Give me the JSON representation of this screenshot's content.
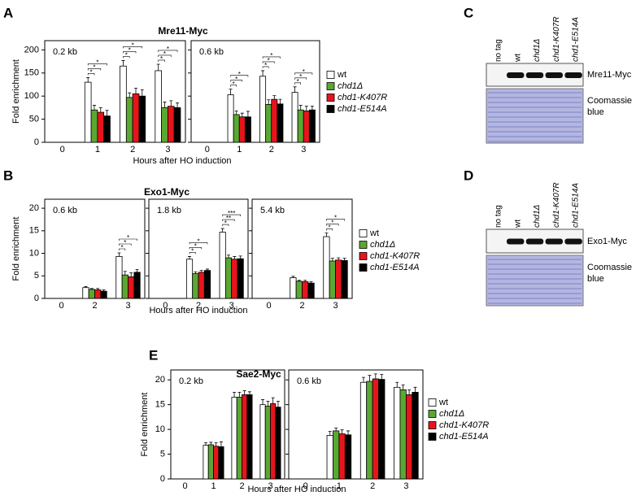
{
  "chart_data": [
    {
      "type": "bar",
      "panel": "A",
      "title": "Mre11-Myc",
      "ylabel": "Fold enrichment",
      "xlabel": "Hours after HO induction",
      "categories": [
        "0",
        "1",
        "2",
        "3"
      ],
      "ylim": [
        0,
        220
      ],
      "yticks": [
        0,
        50,
        100,
        150,
        200
      ],
      "series": [
        {
          "name": "wt",
          "color": "#ffffff"
        },
        {
          "name": "chd1Δ",
          "color": "#5aa832"
        },
        {
          "name": "chd1-K407R",
          "color": "#e8141c"
        },
        {
          "name": "chd1-E514A",
          "color": "#000000"
        }
      ],
      "subplots": [
        {
          "label": "0.2 kb",
          "values": [
            [
              null,
              130,
              165,
              155
            ],
            [
              null,
              70,
              97,
              75
            ],
            [
              null,
              65,
              105,
              78
            ],
            [
              null,
              57,
              100,
              75
            ]
          ],
          "errors": [
            [
              null,
              10,
              12,
              14
            ],
            [
              null,
              10,
              10,
              12
            ],
            [
              null,
              10,
              12,
              12
            ],
            [
              null,
              12,
              14,
              10
            ]
          ],
          "significance": [
            null,
            [
              "*",
              "*",
              "*"
            ],
            [
              "*",
              "*",
              "*"
            ],
            [
              "*",
              "*",
              "*"
            ]
          ]
        },
        {
          "label": "0.6 kb",
          "values": [
            [
              null,
              103,
              143,
              108
            ],
            [
              null,
              60,
              82,
              70
            ],
            [
              null,
              55,
              93,
              68
            ],
            [
              null,
              55,
              83,
              70
            ]
          ],
          "errors": [
            [
              null,
              12,
              12,
              12
            ],
            [
              null,
              8,
              10,
              10
            ],
            [
              null,
              8,
              8,
              10
            ],
            [
              null,
              12,
              10,
              8
            ]
          ],
          "significance": [
            null,
            [
              "*",
              "*",
              "*"
            ],
            [
              "*",
              "*",
              "*"
            ],
            [
              "*",
              "*",
              "*"
            ]
          ]
        }
      ]
    },
    {
      "type": "bar",
      "panel": "B",
      "title": "Exo1-Myc",
      "ylabel": "Fold enrichment",
      "xlabel": "Hours after HO induction",
      "categories": [
        "0",
        "2",
        "3"
      ],
      "ylim": [
        0,
        22
      ],
      "yticks": [
        0,
        5,
        10,
        15,
        20
      ],
      "series": [
        {
          "name": "wt",
          "color": "#ffffff"
        },
        {
          "name": "chd1Δ",
          "color": "#5aa832"
        },
        {
          "name": "chd1-K407R",
          "color": "#e8141c"
        },
        {
          "name": "chd1-E514A",
          "color": "#000000"
        }
      ],
      "subplots": [
        {
          "label": "0.6 kb",
          "values": [
            [
              null,
              2.4,
              9.3
            ],
            [
              null,
              2.0,
              5.2
            ],
            [
              null,
              1.9,
              4.8
            ],
            [
              null,
              1.6,
              5.8
            ]
          ],
          "errors": [
            [
              null,
              0.2,
              0.8
            ],
            [
              null,
              0.2,
              0.8
            ],
            [
              null,
              0.3,
              0.9
            ],
            [
              null,
              0.3,
              0.6
            ]
          ],
          "significance": [
            null,
            null,
            [
              "*",
              "*",
              "*"
            ]
          ]
        },
        {
          "label": "1.8 kb",
          "values": [
            [
              null,
              8.7,
              14.7
            ],
            [
              null,
              5.5,
              9.0
            ],
            [
              null,
              5.8,
              8.7
            ],
            [
              null,
              6.2,
              8.8
            ]
          ],
          "errors": [
            [
              null,
              0.6,
              0.8
            ],
            [
              null,
              0.4,
              0.6
            ],
            [
              null,
              0.4,
              0.6
            ],
            [
              null,
              0.3,
              0.6
            ]
          ],
          "significance": [
            null,
            [
              "*",
              "*",
              "*"
            ],
            [
              "*",
              "**",
              "***"
            ]
          ]
        },
        {
          "label": "5.4 kb",
          "values": [
            [
              null,
              4.6,
              13.7
            ],
            [
              null,
              3.8,
              8.3
            ],
            [
              null,
              3.7,
              8.5
            ],
            [
              null,
              3.4,
              8.4
            ]
          ],
          "errors": [
            [
              null,
              0.3,
              0.8
            ],
            [
              null,
              0.2,
              0.6
            ],
            [
              null,
              0.3,
              0.5
            ],
            [
              null,
              0.3,
              0.5
            ]
          ],
          "significance": [
            null,
            null,
            [
              "*",
              "*",
              "*"
            ]
          ]
        }
      ]
    },
    {
      "type": "bar",
      "panel": "E",
      "title": "Sae2-Myc",
      "ylabel": "Fold enrichment",
      "xlabel": "Hours after HO induction",
      "categories": [
        "0",
        "1",
        "2",
        "3"
      ],
      "ylim": [
        0,
        22
      ],
      "yticks": [
        0,
        5,
        10,
        15,
        20
      ],
      "series": [
        {
          "name": "wt",
          "color": "#ffffff"
        },
        {
          "name": "chd1Δ",
          "color": "#5aa832"
        },
        {
          "name": "chd1-K407R",
          "color": "#e8141c"
        },
        {
          "name": "chd1-E514A",
          "color": "#000000"
        }
      ],
      "subplots": [
        {
          "label": "0.2 kb",
          "values": [
            [
              null,
              6.8,
              16.5,
              15.0
            ],
            [
              null,
              6.9,
              16.5,
              14.7
            ],
            [
              null,
              6.6,
              17.0,
              15.2
            ],
            [
              null,
              6.5,
              17.0,
              14.5
            ]
          ],
          "errors": [
            [
              null,
              0.5,
              1.0,
              1.0
            ],
            [
              null,
              0.5,
              1.0,
              1.0
            ],
            [
              null,
              0.7,
              0.8,
              1.2
            ],
            [
              null,
              1.0,
              0.6,
              1.2
            ]
          ]
        },
        {
          "label": "0.6 kb",
          "values": [
            [
              null,
              8.8,
              19.5,
              18.5
            ],
            [
              null,
              9.7,
              19.7,
              18.0
            ],
            [
              null,
              9.1,
              20.2,
              17.0
            ],
            [
              null,
              8.9,
              20.1,
              17.5
            ]
          ],
          "errors": [
            [
              null,
              0.8,
              1.0,
              1.0
            ],
            [
              null,
              0.6,
              1.2,
              1.0
            ],
            [
              null,
              0.8,
              1.0,
              1.0
            ],
            [
              null,
              0.8,
              1.0,
              1.0
            ]
          ]
        }
      ]
    }
  ],
  "blots": [
    {
      "panel": "C",
      "lanes": [
        "no tag",
        "wt",
        "chd1Δ",
        "chd1-K407R",
        "chd1-E514A"
      ],
      "band_label": "Mre11-Myc",
      "stain_label": "Coomassie blue"
    },
    {
      "panel": "D",
      "lanes": [
        "no tag",
        "wt",
        "chd1Δ",
        "chd1-K407R",
        "chd1-E514A"
      ],
      "band_label": "Exo1-Myc",
      "stain_label": "Coomassie blue"
    }
  ]
}
